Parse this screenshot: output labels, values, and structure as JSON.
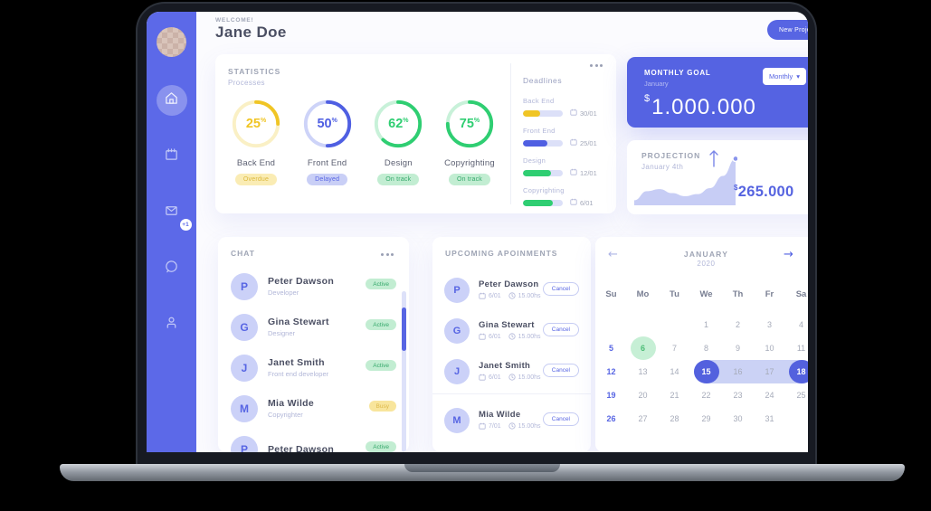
{
  "colors": {
    "accent": "#5765E3",
    "sidebar": "#5C69E8",
    "goal_card": "#5563E2",
    "yellow": "#F0C525",
    "blue": "#4F5FE2",
    "green": "#2FCE72",
    "page_background": "#000000"
  },
  "header": {
    "welcome": "WELCOME!",
    "name": "Jane Doe",
    "new_project_label": "New Project"
  },
  "sidebar": {
    "mail_badge": "+1",
    "icons": [
      "home-icon",
      "calendar-icon",
      "mail-icon",
      "chat-icon",
      "user-icon"
    ],
    "active_icon": "home-icon"
  },
  "statistics": {
    "title": "STATISTICS",
    "subtitle": "Processes",
    "items": [
      {
        "percent": 25,
        "unit": "%",
        "label": "Back End",
        "status": "Overdue",
        "color": "#F0C525",
        "track": "#FAF0C5",
        "badge_bg": "#FAECB4",
        "badge_fg": "#DCB93F"
      },
      {
        "percent": 50,
        "unit": "%",
        "label": "Front End",
        "status": "Delayed",
        "color": "#4F5FE2",
        "track": "#CDD3F8",
        "badge_bg": "#C9CFF6",
        "badge_fg": "#5765E3"
      },
      {
        "percent": 62,
        "unit": "%",
        "label": "Design",
        "status": "On track",
        "color": "#2FCE72",
        "track": "#C8F1D9",
        "badge_bg": "#C2EDD2",
        "badge_fg": "#35A86B"
      },
      {
        "percent": 75,
        "unit": "%",
        "label": "Copyrighting",
        "status": "On track",
        "color": "#2FCE72",
        "track": "#C8F1D9",
        "badge_bg": "#C2EDD2",
        "badge_fg": "#35A86B"
      }
    ]
  },
  "deadlines": {
    "title": "Deadlines",
    "menu_icon": "ellipsis-icon",
    "items": [
      {
        "label": "Back End",
        "date": "30/01",
        "progress": 43,
        "color": "#F0C525"
      },
      {
        "label": "Front End",
        "date": "25/01",
        "progress": 61,
        "color": "#4F5FE2"
      },
      {
        "label": "Design",
        "date": "12/01",
        "progress": 70,
        "color": "#2FCE72"
      },
      {
        "label": "Copyrighting",
        "date": "6/01",
        "progress": 75,
        "color": "#2FCE72"
      }
    ]
  },
  "monthly_goal": {
    "title": "MONTHLY GOAL",
    "subtitle": "January",
    "currency": "$",
    "amount": "1.000.000",
    "period_selector": "Monthly",
    "chevron": "▾"
  },
  "projection": {
    "title": "PROJECTION",
    "subtitle": "January 4th",
    "currency": "$",
    "amount": "265.000",
    "menu_icon": "ellipsis-icon",
    "sparkline": [
      10,
      28,
      32,
      24,
      18,
      22,
      34,
      58,
      92
    ]
  },
  "chat": {
    "title": "CHAT",
    "menu_icon": "ellipsis-icon",
    "items": [
      {
        "initial": "P",
        "name": "Peter Dawson",
        "role": "Developer",
        "status": "Active",
        "status_bg": "#C2EDD2",
        "status_fg": "#35A86B"
      },
      {
        "initial": "G",
        "name": "Gina Stewart",
        "role": "Designer",
        "status": "Active",
        "status_bg": "#C2EDD2",
        "status_fg": "#35A86B"
      },
      {
        "initial": "J",
        "name": "Janet Smith",
        "role": "Front end developer",
        "status": "Active",
        "status_bg": "#C2EDD2",
        "status_fg": "#35A86B"
      },
      {
        "initial": "M",
        "name": "Mia Wilde",
        "role": "Copyrighter",
        "status": "Busy",
        "status_bg": "#F8E59C",
        "status_fg": "#DDB94A"
      },
      {
        "initial": "P",
        "name": "Peter Dawson",
        "role": "",
        "status": "Active",
        "status_bg": "#C2EDD2",
        "status_fg": "#35A86B"
      }
    ]
  },
  "appointments": {
    "title": "UPCOMING APOINMENTS",
    "cancel_label": "Cancel",
    "items": [
      {
        "initial": "P",
        "name": "Peter Dawson",
        "date": "6/01",
        "time": "15.00hs",
        "divider_above": false
      },
      {
        "initial": "G",
        "name": "Gina Stewart",
        "date": "6/01",
        "time": "15.00hs",
        "divider_above": false
      },
      {
        "initial": "J",
        "name": "Janet Smith",
        "date": "6/01",
        "time": "15.00hs",
        "divider_above": false
      },
      {
        "initial": "M",
        "name": "Mia Wilde",
        "date": "7/01",
        "time": "15.00hs",
        "divider_above": true
      }
    ]
  },
  "calendar": {
    "month": "JANUARY",
    "year": "2020",
    "prev_arrow": "←",
    "next_arrow": "→",
    "weekdays": [
      "Su",
      "Mo",
      "Tu",
      "We",
      "Th",
      "Fr",
      "Sa"
    ],
    "weeks": [
      [
        "",
        "",
        "",
        "1",
        "2",
        "3",
        "4"
      ],
      [
        "5",
        "6",
        "7",
        "8",
        "9",
        "10",
        "11"
      ],
      [
        "12",
        "13",
        "14",
        "15",
        "16",
        "17",
        "18"
      ],
      [
        "19",
        "20",
        "21",
        "22",
        "23",
        "24",
        "25"
      ],
      [
        "26",
        "27",
        "28",
        "29",
        "30",
        "31",
        ""
      ]
    ],
    "event_day": "6",
    "selected_days": [
      "15",
      "18"
    ],
    "range": {
      "week_index": 2,
      "from_col": 3,
      "to_col": 6
    }
  }
}
